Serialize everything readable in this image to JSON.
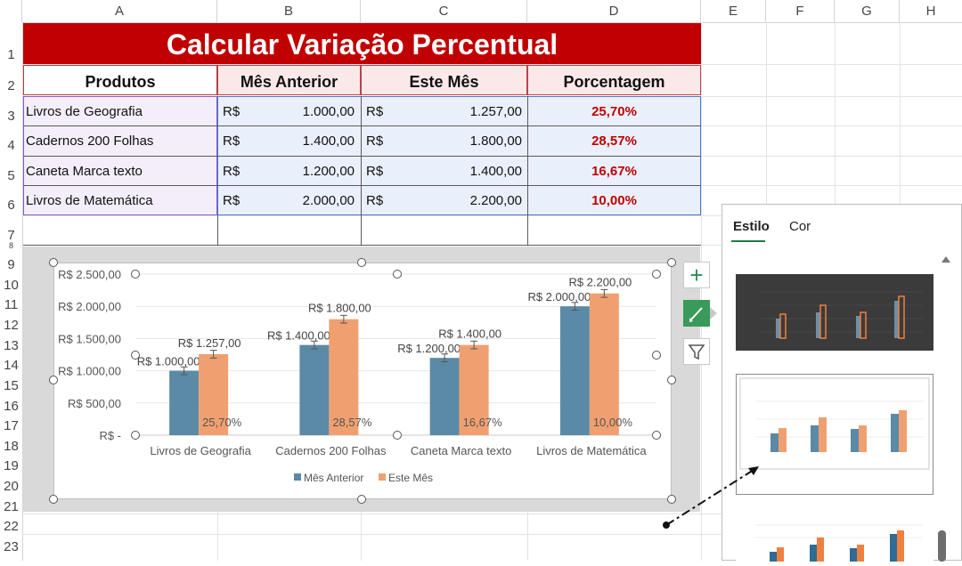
{
  "columns": [
    "A",
    "B",
    "C",
    "D",
    "E",
    "F",
    "G",
    "H"
  ],
  "rows": [
    "1",
    "2",
    "3",
    "4",
    "5",
    "6",
    "7",
    "8",
    "9",
    "10",
    "11",
    "12",
    "13",
    "14",
    "15",
    "16",
    "17",
    "18",
    "19",
    "20",
    "21",
    "22",
    "23"
  ],
  "sheet": {
    "title": "Calcular Variação Percentual",
    "headers": [
      "Produtos",
      "Mês Anterior",
      "Este Mês",
      "Porcentagem"
    ],
    "currency": "R$",
    "data": [
      {
        "produto": "Livros de Geografia",
        "anterior": "1.000,00",
        "atual": "1.257,00",
        "pct": "25,70%"
      },
      {
        "produto": "Cadernos 200 Folhas",
        "anterior": "1.400,00",
        "atual": "1.800,00",
        "pct": "28,57%"
      },
      {
        "produto": "Caneta Marca texto",
        "anterior": "1.200,00",
        "atual": "1.400,00",
        "pct": "16,67%"
      },
      {
        "produto": "Livros de Matemática",
        "anterior": "2.000,00",
        "atual": "2.200,00",
        "pct": "10,00%"
      }
    ]
  },
  "chart_data": {
    "type": "bar",
    "categories": [
      "Livros de Geografia",
      "Cadernos 200 Folhas",
      "Caneta Marca texto",
      "Livros de Matemática"
    ],
    "series": [
      {
        "name": "Mês Anterior",
        "values": [
          1000,
          1400,
          1200,
          2000
        ],
        "color": "#5b8aa6",
        "labels": [
          "R$ 1.000,00",
          "R$ 1.400,00",
          "R$ 1.200,00",
          "R$ 2.000,00"
        ]
      },
      {
        "name": "Este Mês",
        "values": [
          1257,
          1800,
          1400,
          2200
        ],
        "color": "#f0a070",
        "labels": [
          "R$ 1.257,00",
          "R$ 1.800,00",
          "R$ 1.400,00",
          "R$ 2.200,00"
        ]
      }
    ],
    "percent_labels": [
      "25,70%",
      "28,57%",
      "16,67%",
      "10,00%"
    ],
    "ylim": [
      0,
      2500
    ],
    "yticks": [
      0,
      500,
      1000,
      1500,
      2000,
      2500
    ],
    "ytick_labels": [
      "R$ -",
      "R$ 500,00",
      "R$ 1.000,00",
      "R$ 1.500,00",
      "R$ 2.000,00",
      "R$ 2.500,00"
    ],
    "error_bars": true,
    "legend": "bottom"
  },
  "chart_buttons": {
    "elements": "+",
    "styles": "brush-icon",
    "filters": "filter-icon"
  },
  "style_panel": {
    "tabs": [
      "Estilo",
      "Cor"
    ],
    "active_tab": "Estilo"
  }
}
